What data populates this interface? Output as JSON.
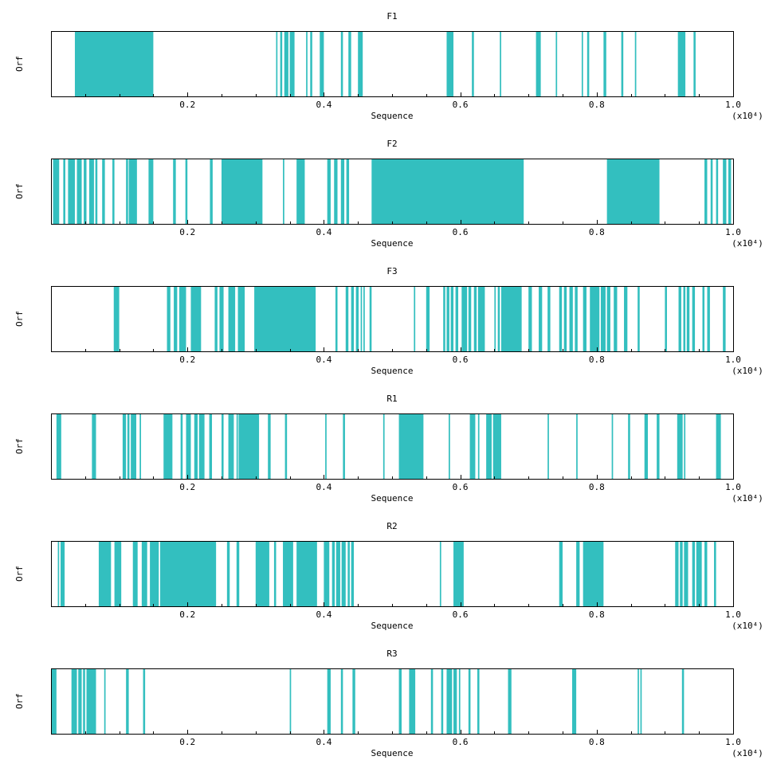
{
  "chart_data": [
    {
      "type": "bar",
      "title": "F1",
      "xlabel": "Sequence",
      "ylabel": "Orf",
      "x_multiplier": "(x10⁴)",
      "xlim": [
        0,
        1.0
      ],
      "xticks": [
        "0.2",
        "0.4",
        "0.6",
        "0.8",
        "1.0"
      ],
      "series": [
        {
          "color": "#33BFBF",
          "segments": [
            [
              0.035,
              0.15
            ],
            [
              0.33,
              0.332
            ],
            [
              0.336,
              0.339
            ],
            [
              0.342,
              0.348
            ],
            [
              0.35,
              0.357
            ],
            [
              0.374,
              0.376
            ],
            [
              0.38,
              0.383
            ],
            [
              0.394,
              0.4
            ],
            [
              0.425,
              0.428
            ],
            [
              0.436,
              0.44
            ],
            [
              0.45,
              0.457
            ],
            [
              0.58,
              0.59
            ],
            [
              0.617,
              0.62
            ],
            [
              0.658,
              0.66
            ],
            [
              0.711,
              0.718
            ],
            [
              0.74,
              0.742
            ],
            [
              0.778,
              0.78
            ],
            [
              0.786,
              0.789
            ],
            [
              0.81,
              0.814
            ],
            [
              0.836,
              0.839
            ],
            [
              0.856,
              0.858
            ],
            [
              0.919,
              0.93
            ],
            [
              0.942,
              0.945
            ]
          ]
        }
      ]
    },
    {
      "type": "bar",
      "title": "F2",
      "xlabel": "Sequence",
      "ylabel": "Orf",
      "x_multiplier": "(x10⁴)",
      "xlim": [
        0,
        1.0
      ],
      "xticks": [
        "0.2",
        "0.4",
        "0.6",
        "0.8",
        "1.0"
      ],
      "series": [
        {
          "color": "#33BFBF",
          "segments": [
            [
              0.003,
              0.012
            ],
            [
              0.018,
              0.021
            ],
            [
              0.025,
              0.035
            ],
            [
              0.038,
              0.045
            ],
            [
              0.048,
              0.052
            ],
            [
              0.056,
              0.063
            ],
            [
              0.065,
              0.068
            ],
            [
              0.075,
              0.079
            ],
            [
              0.09,
              0.093
            ],
            [
              0.11,
              0.113
            ],
            [
              0.114,
              0.126
            ],
            [
              0.143,
              0.15
            ],
            [
              0.179,
              0.183
            ],
            [
              0.197,
              0.2
            ],
            [
              0.233,
              0.237
            ],
            [
              0.25,
              0.31
            ],
            [
              0.34,
              0.342
            ],
            [
              0.36,
              0.372
            ],
            [
              0.405,
              0.41
            ],
            [
              0.415,
              0.42
            ],
            [
              0.425,
              0.43
            ],
            [
              0.433,
              0.437
            ],
            [
              0.47,
              0.693
            ],
            [
              0.815,
              0.892
            ],
            [
              0.958,
              0.962
            ],
            [
              0.967,
              0.97
            ],
            [
              0.975,
              0.978
            ],
            [
              0.985,
              0.99
            ],
            [
              0.993,
              0.997
            ]
          ]
        }
      ]
    },
    {
      "type": "bar",
      "title": "F3",
      "xlabel": "Sequence",
      "ylabel": "Orf",
      "x_multiplier": "(x10⁴)",
      "xlim": [
        0,
        1.0
      ],
      "xticks": [
        "0.2",
        "0.4",
        "0.6",
        "0.8",
        "1.0"
      ],
      "series": [
        {
          "color": "#33BFBF",
          "segments": [
            [
              0.092,
              0.1
            ],
            [
              0.17,
              0.175
            ],
            [
              0.18,
              0.185
            ],
            [
              0.188,
              0.198
            ],
            [
              0.205,
              0.22
            ],
            [
              0.24,
              0.244
            ],
            [
              0.247,
              0.253
            ],
            [
              0.26,
              0.27
            ],
            [
              0.274,
              0.284
            ],
            [
              0.298,
              0.388
            ],
            [
              0.417,
              0.42
            ],
            [
              0.432,
              0.436
            ],
            [
              0.44,
              0.444
            ],
            [
              0.447,
              0.451
            ],
            [
              0.454,
              0.456
            ],
            [
              0.458,
              0.46
            ],
            [
              0.467,
              0.47
            ],
            [
              0.532,
              0.534
            ],
            [
              0.55,
              0.555
            ],
            [
              0.575,
              0.578
            ],
            [
              0.58,
              0.584
            ],
            [
              0.586,
              0.59
            ],
            [
              0.593,
              0.597
            ],
            [
              0.602,
              0.61
            ],
            [
              0.612,
              0.616
            ],
            [
              0.62,
              0.624
            ],
            [
              0.626,
              0.636
            ],
            [
              0.65,
              0.652
            ],
            [
              0.655,
              0.658
            ],
            [
              0.66,
              0.69
            ],
            [
              0.7,
              0.705
            ],
            [
              0.715,
              0.72
            ],
            [
              0.728,
              0.732
            ],
            [
              0.745,
              0.749
            ],
            [
              0.752,
              0.756
            ],
            [
              0.76,
              0.765
            ],
            [
              0.768,
              0.772
            ],
            [
              0.78,
              0.785
            ],
            [
              0.79,
              0.804
            ],
            [
              0.806,
              0.813
            ],
            [
              0.815,
              0.82
            ],
            [
              0.825,
              0.83
            ],
            [
              0.84,
              0.845
            ],
            [
              0.86,
              0.863
            ],
            [
              0.9,
              0.903
            ],
            [
              0.92,
              0.924
            ],
            [
              0.927,
              0.93
            ],
            [
              0.932,
              0.936
            ],
            [
              0.94,
              0.944
            ],
            [
              0.955,
              0.958
            ],
            [
              0.962,
              0.966
            ],
            [
              0.985,
              0.989
            ]
          ]
        }
      ]
    },
    {
      "type": "bar",
      "title": "R1",
      "xlabel": "Sequence",
      "ylabel": "Orf",
      "x_multiplier": "(x10⁴)",
      "xlim": [
        0,
        1.0
      ],
      "xticks": [
        "0.2",
        "0.4",
        "0.6",
        "0.8",
        "1.0"
      ],
      "series": [
        {
          "color": "#33BFBF",
          "segments": [
            [
              0.008,
              0.015
            ],
            [
              0.06,
              0.066
            ],
            [
              0.105,
              0.11
            ],
            [
              0.112,
              0.115
            ],
            [
              0.117,
              0.125
            ],
            [
              0.13,
              0.132
            ],
            [
              0.165,
              0.178
            ],
            [
              0.19,
              0.193
            ],
            [
              0.198,
              0.205
            ],
            [
              0.21,
              0.215
            ],
            [
              0.217,
              0.225
            ],
            [
              0.232,
              0.236
            ],
            [
              0.25,
              0.253
            ],
            [
              0.26,
              0.268
            ],
            [
              0.272,
              0.274
            ],
            [
              0.275,
              0.305
            ],
            [
              0.318,
              0.322
            ],
            [
              0.343,
              0.346
            ],
            [
              0.402,
              0.404
            ],
            [
              0.428,
              0.431
            ],
            [
              0.487,
              0.489
            ],
            [
              0.51,
              0.546
            ],
            [
              0.583,
              0.585
            ],
            [
              0.614,
              0.622
            ],
            [
              0.626,
              0.628
            ],
            [
              0.638,
              0.646
            ],
            [
              0.648,
              0.66
            ],
            [
              0.728,
              0.73
            ],
            [
              0.77,
              0.772
            ],
            [
              0.822,
              0.824
            ],
            [
              0.846,
              0.849
            ],
            [
              0.87,
              0.875
            ],
            [
              0.888,
              0.892
            ],
            [
              0.918,
              0.926
            ],
            [
              0.928,
              0.93
            ],
            [
              0.975,
              0.982
            ]
          ]
        }
      ]
    },
    {
      "type": "bar",
      "title": "R2",
      "xlabel": "Sequence",
      "ylabel": "Orf",
      "x_multiplier": "(x10⁴)",
      "xlim": [
        0,
        1.0
      ],
      "xticks": [
        "0.2",
        "0.4",
        "0.6",
        "0.8",
        "1.0"
      ],
      "series": [
        {
          "color": "#33BFBF",
          "segments": [
            [
              0.01,
              0.012
            ],
            [
              0.014,
              0.02
            ],
            [
              0.07,
              0.088
            ],
            [
              0.093,
              0.103
            ],
            [
              0.12,
              0.127
            ],
            [
              0.133,
              0.141
            ],
            [
              0.145,
              0.158
            ],
            [
              0.16,
              0.242
            ],
            [
              0.258,
              0.262
            ],
            [
              0.272,
              0.276
            ],
            [
              0.3,
              0.32
            ],
            [
              0.327,
              0.33
            ],
            [
              0.34,
              0.355
            ],
            [
              0.36,
              0.39
            ],
            [
              0.4,
              0.408
            ],
            [
              0.412,
              0.416
            ],
            [
              0.418,
              0.424
            ],
            [
              0.426,
              0.432
            ],
            [
              0.435,
              0.438
            ],
            [
              0.44,
              0.444
            ],
            [
              0.57,
              0.572
            ],
            [
              0.59,
              0.605
            ],
            [
              0.745,
              0.75
            ],
            [
              0.77,
              0.775
            ],
            [
              0.78,
              0.81
            ],
            [
              0.915,
              0.92
            ],
            [
              0.922,
              0.926
            ],
            [
              0.928,
              0.934
            ],
            [
              0.94,
              0.944
            ],
            [
              0.946,
              0.954
            ],
            [
              0.958,
              0.962
            ],
            [
              0.972,
              0.975
            ]
          ]
        }
      ]
    },
    {
      "type": "bar",
      "title": "R3",
      "xlabel": "Sequence",
      "ylabel": "Orf",
      "x_multiplier": "(x10⁴)",
      "xlim": [
        0,
        1.0
      ],
      "xticks": [
        "0.2",
        "0.4",
        "0.6",
        "0.8",
        "1.0"
      ],
      "series": [
        {
          "color": "#33BFBF",
          "segments": [
            [
              0.0,
              0.008
            ],
            [
              0.03,
              0.038
            ],
            [
              0.04,
              0.045
            ],
            [
              0.047,
              0.05
            ],
            [
              0.052,
              0.066
            ],
            [
              0.078,
              0.08
            ],
            [
              0.11,
              0.114
            ],
            [
              0.135,
              0.138
            ],
            [
              0.35,
              0.352
            ],
            [
              0.405,
              0.41
            ],
            [
              0.425,
              0.428
            ],
            [
              0.442,
              0.446
            ],
            [
              0.51,
              0.514
            ],
            [
              0.525,
              0.534
            ],
            [
              0.557,
              0.56
            ],
            [
              0.572,
              0.575
            ],
            [
              0.58,
              0.588
            ],
            [
              0.59,
              0.595
            ],
            [
              0.598,
              0.6
            ],
            [
              0.612,
              0.615
            ],
            [
              0.625,
              0.628
            ],
            [
              0.67,
              0.675
            ],
            [
              0.764,
              0.77
            ],
            [
              0.86,
              0.862
            ],
            [
              0.864,
              0.866
            ],
            [
              0.925,
              0.928
            ]
          ]
        }
      ]
    }
  ]
}
